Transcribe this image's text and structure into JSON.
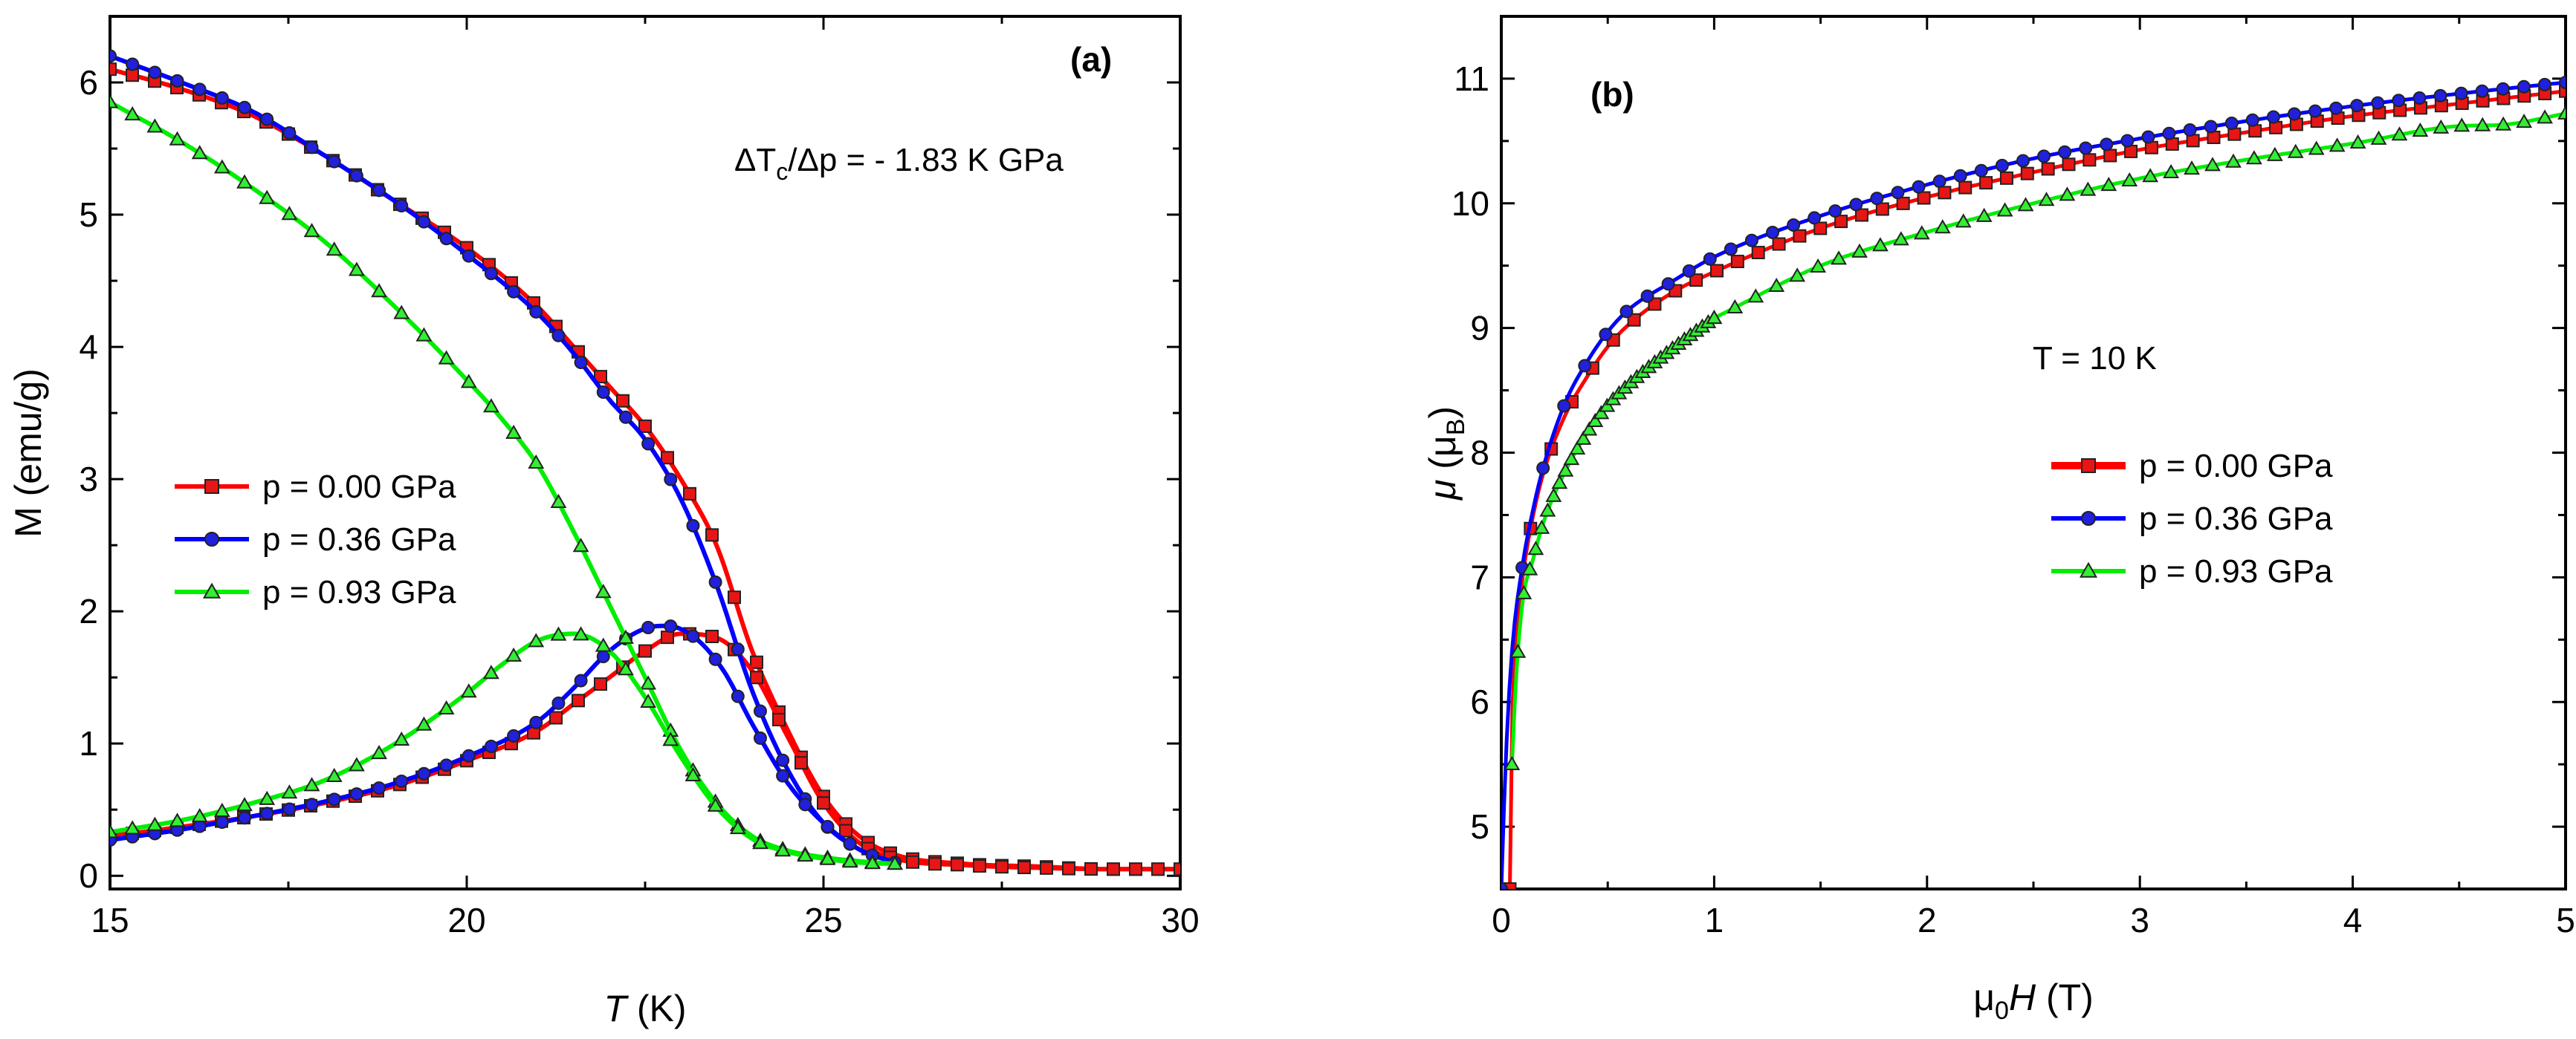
{
  "chart_data": [
    {
      "type": "line",
      "panel_label": "(a)",
      "annotation": {
        "base": "ΔT",
        "sub": "c",
        "rest": "/Δp = - 1.83 K GPa"
      },
      "xlabel": {
        "main": "T",
        "rest": " (K)"
      },
      "ylabel": "M (emu/g)",
      "xlim": [
        15,
        30
      ],
      "ylim": [
        -0.1,
        6.5
      ],
      "xticks": [
        15,
        20,
        25,
        30
      ],
      "yticks": [
        0,
        1,
        2,
        3,
        4,
        5,
        6
      ],
      "legend_position": "middle-left",
      "series": [
        {
          "name": "p = 0.00 GPa",
          "color": "#ff0000",
          "marker": "square",
          "marker_fill": "#e81515",
          "curves": [
            {
              "x": [
                15,
                16,
                17,
                18,
                19,
                20,
                21,
                21.5,
                22,
                22.5,
                23,
                23.5,
                24,
                24.5,
                25,
                25.5,
                26,
                27,
                28,
                29,
                30
              ],
              "y": [
                6.1,
                5.95,
                5.75,
                5.45,
                5.1,
                4.75,
                4.3,
                4.0,
                3.7,
                3.4,
                3.0,
                2.5,
                1.7,
                1.1,
                0.6,
                0.3,
                0.16,
                0.09,
                0.07,
                0.05,
                0.05
              ]
            },
            {
              "x": [
                15,
                16,
                17,
                18,
                19,
                20,
                21,
                21.5,
                22,
                22.5,
                23,
                23.5,
                24,
                24.5,
                25,
                25.5,
                26,
                27,
                28,
                29,
                30
              ],
              "y": [
                0.3,
                0.37,
                0.45,
                0.55,
                0.68,
                0.87,
                1.1,
                1.3,
                1.5,
                1.7,
                1.83,
                1.8,
                1.55,
                1.05,
                0.55,
                0.25,
                0.13,
                0.08,
                0.06,
                0.05,
                0.05
              ]
            }
          ]
        },
        {
          "name": "p = 0.36 GPa",
          "color": "#0000ff",
          "marker": "circle",
          "marker_fill": "#2020dd",
          "curves": [
            {
              "x": [
                15,
                16,
                17,
                18,
                19,
                20,
                21,
                21.5,
                22,
                22.5,
                23,
                23.5,
                24,
                24.5,
                25,
                25.5,
                26
              ],
              "y": [
                6.2,
                6.0,
                5.78,
                5.45,
                5.1,
                4.7,
                4.25,
                3.95,
                3.6,
                3.3,
                2.85,
                2.2,
                1.4,
                0.8,
                0.4,
                0.2,
                0.1
              ]
            },
            {
              "x": [
                15,
                16,
                17,
                18,
                19,
                20,
                21,
                21.5,
                22,
                22.5,
                22.8,
                23.2,
                23.6,
                24,
                24.5,
                25,
                25.5,
                26
              ],
              "y": [
                0.27,
                0.35,
                0.45,
                0.56,
                0.7,
                0.9,
                1.17,
                1.42,
                1.7,
                1.87,
                1.89,
                1.8,
                1.55,
                1.15,
                0.7,
                0.4,
                0.2,
                0.1
              ]
            }
          ]
        },
        {
          "name": "p = 0.93 GPa",
          "color": "#00ee00",
          "marker": "triangle",
          "marker_fill": "#33ee33",
          "curves": [
            {
              "x": [
                15,
                16,
                17,
                18,
                19,
                20,
                20.5,
                21,
                21.5,
                22,
                22.5,
                23,
                23.5,
                24,
                24.5,
                25,
                25.5,
                26
              ],
              "y": [
                5.85,
                5.55,
                5.2,
                4.8,
                4.3,
                3.75,
                3.45,
                3.1,
                2.6,
                2.05,
                1.5,
                0.95,
                0.55,
                0.3,
                0.19,
                0.14,
                0.11,
                0.09
              ]
            },
            {
              "x": [
                15,
                16,
                17,
                18,
                19,
                20,
                20.5,
                21,
                21.5,
                22,
                22.5,
                23,
                23.5,
                24,
                24.5,
                25,
                25.5,
                26
              ],
              "y": [
                0.33,
                0.42,
                0.55,
                0.72,
                1.0,
                1.38,
                1.6,
                1.78,
                1.83,
                1.7,
                1.35,
                0.9,
                0.52,
                0.28,
                0.18,
                0.13,
                0.1,
                0.09
              ]
            }
          ]
        }
      ]
    },
    {
      "type": "line",
      "panel_label": "(b)",
      "annotation": {
        "text": "T = 10 K"
      },
      "xlabel": {
        "pre": "μ",
        "sub": "0",
        "ital": "H",
        "rest": " (T)"
      },
      "ylabel": {
        "ital": "μ",
        "mid": " (μ",
        "sub": "B",
        "rest": ")"
      },
      "xlim": [
        0,
        5
      ],
      "ylim": [
        4.5,
        11.5
      ],
      "xticks": [
        0,
        1,
        2,
        3,
        4,
        5
      ],
      "yticks": [
        5,
        6,
        7,
        8,
        9,
        10,
        11
      ],
      "legend_position": "center-right",
      "series": [
        {
          "name": "p = 0.00 GPa",
          "color": "#ff0000",
          "marker": "square",
          "marker_fill": "#e81515",
          "curves": [
            {
              "x": [
                0.04,
                0.05,
                0.07,
                0.1,
                0.15,
                0.2,
                0.3,
                0.4,
                0.5,
                0.6,
                0.8,
                1.0,
                1.5,
                2.0,
                2.5,
                3.0,
                3.5,
                4.0,
                4.5,
                5.0
              ],
              "y": [
                4.5,
                5.8,
                6.5,
                7.0,
                7.5,
                7.85,
                8.3,
                8.6,
                8.85,
                9.03,
                9.28,
                9.45,
                9.8,
                10.05,
                10.25,
                10.43,
                10.57,
                10.7,
                10.8,
                10.9
              ]
            }
          ]
        },
        {
          "name": "p = 0.36 GPa",
          "color": "#0000ff",
          "marker": "circle",
          "marker_fill": "#2020dd",
          "curves": [
            {
              "x": [
                0.0,
                0.02,
                0.05,
                0.1,
                0.15,
                0.2,
                0.3,
                0.4,
                0.5,
                0.6,
                0.8,
                1.0,
                1.5,
                2.0,
                2.5,
                3.0,
                3.5,
                4.0,
                4.5,
                5.0
              ],
              "y": [
                4.5,
                5.5,
                6.4,
                7.1,
                7.55,
                7.9,
                8.4,
                8.72,
                8.97,
                9.15,
                9.37,
                9.57,
                9.9,
                10.15,
                10.36,
                10.52,
                10.66,
                10.78,
                10.88,
                10.97
              ]
            }
          ]
        },
        {
          "name": "p = 0.93 GPa",
          "color": "#00ee00",
          "marker": "triangle",
          "marker_fill": "#33ee33",
          "curves": [
            {
              "x": [
                0.05,
                0.07,
                0.1,
                0.15,
                0.2,
                0.3,
                0.4,
                0.5,
                0.6,
                0.8,
                1.0
              ],
              "y": [
                5.5,
                6.2,
                6.8,
                7.15,
                7.45,
                7.85,
                8.15,
                8.38,
                8.55,
                8.83,
                9.08
              ]
            },
            {
              "x": [
                1.0,
                1.5,
                2.0,
                2.5,
                3.0,
                3.5,
                4.0,
                4.5,
                4.7,
                5.0
              ],
              "y": [
                9.08,
                9.5,
                9.77,
                10.0,
                10.2,
                10.35,
                10.48,
                10.62,
                10.63,
                10.72
              ]
            }
          ]
        }
      ]
    }
  ]
}
